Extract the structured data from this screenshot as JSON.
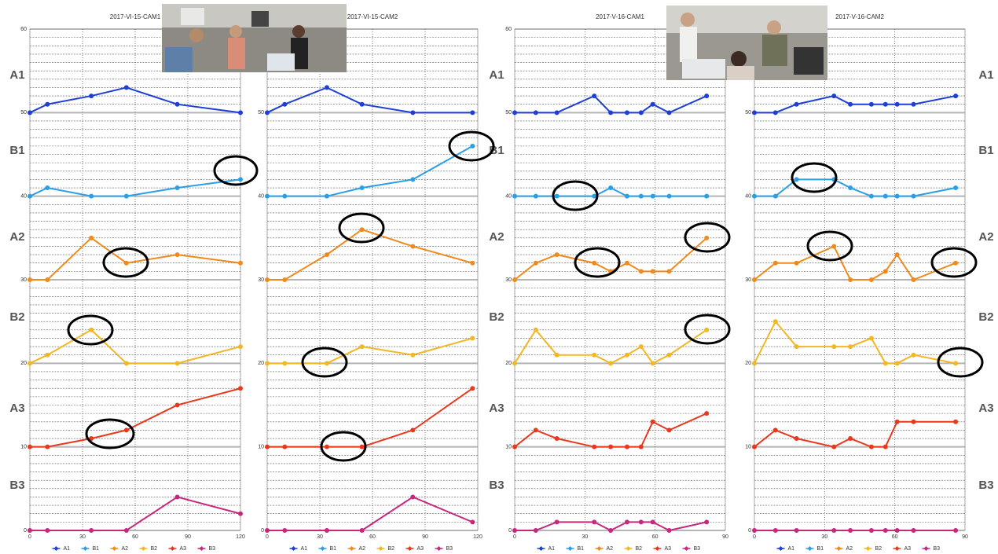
{
  "row_labels": [
    "A1",
    "B1",
    "A2",
    "B2",
    "A3",
    "B3"
  ],
  "chart_data": [
    {
      "type": "line",
      "title": "2017-VI-15-CAM1",
      "x": [
        0,
        10,
        35,
        55,
        84,
        120
      ],
      "xlim": [
        0,
        120
      ],
      "xticks": [
        0,
        30,
        60,
        90,
        120
      ],
      "ylim": [
        0,
        60
      ],
      "yticks": [
        0,
        10,
        20,
        30,
        40,
        50,
        60
      ],
      "grid": true,
      "minor_grid": true,
      "legend": "bottom",
      "series": [
        {
          "name": "A1",
          "color": "#1e3fd6",
          "values": [
            50,
            51,
            52,
            53,
            51,
            50
          ]
        },
        {
          "name": "B1",
          "color": "#2b9fe6",
          "values": [
            40,
            41,
            40,
            40,
            41,
            42
          ]
        },
        {
          "name": "A2",
          "color": "#f08a1c",
          "values": [
            30,
            30,
            35,
            32,
            33,
            32
          ]
        },
        {
          "name": "B2",
          "color": "#f2b722",
          "values": [
            20,
            21,
            24,
            20,
            20,
            22
          ]
        },
        {
          "name": "A3",
          "color": "#e8391e",
          "values": [
            10,
            10,
            11,
            12,
            15,
            17
          ]
        },
        {
          "name": "B3",
          "color": "#c6287e",
          "values": [
            0,
            0,
            0,
            0,
            4,
            2
          ]
        }
      ]
    },
    {
      "type": "line",
      "title": "2017-VI-15-CAM2",
      "x": [
        0,
        10,
        34,
        54,
        83,
        117
      ],
      "xlim": [
        0,
        120
      ],
      "xticks": [
        0,
        30,
        60,
        90,
        120
      ],
      "ylim": [
        0,
        60
      ],
      "yticks": [
        0,
        10,
        20,
        30,
        40,
        50,
        60
      ],
      "grid": true,
      "minor_grid": true,
      "legend": "bottom",
      "series": [
        {
          "name": "A1",
          "color": "#1e3fd6",
          "values": [
            50,
            51,
            53,
            51,
            50,
            50
          ]
        },
        {
          "name": "B1",
          "color": "#2b9fe6",
          "values": [
            40,
            40,
            40,
            41,
            42,
            46
          ]
        },
        {
          "name": "A2",
          "color": "#f08a1c",
          "values": [
            30,
            30,
            33,
            36,
            34,
            32
          ]
        },
        {
          "name": "B2",
          "color": "#f2b722",
          "values": [
            20,
            20,
            20,
            22,
            21,
            23
          ]
        },
        {
          "name": "A3",
          "color": "#e8391e",
          "values": [
            10,
            10,
            10,
            10,
            12,
            17
          ]
        },
        {
          "name": "B3",
          "color": "#c6287e",
          "values": [
            0,
            0,
            0,
            0,
            4,
            1
          ]
        }
      ]
    },
    {
      "type": "line",
      "title": "2017-V-16-CAM1",
      "x": [
        0,
        9,
        18,
        34,
        41,
        48,
        54,
        59,
        66,
        82
      ],
      "xlim": [
        0,
        90
      ],
      "xticks": [
        0,
        30,
        60,
        90
      ],
      "ylim": [
        0,
        60
      ],
      "yticks": [
        0,
        10,
        20,
        30,
        40,
        50,
        60
      ],
      "grid": true,
      "minor_grid": true,
      "legend": "bottom",
      "series": [
        {
          "name": "A1",
          "color": "#1e3fd6",
          "values": [
            50,
            50,
            50,
            52,
            50,
            50,
            50,
            51,
            50,
            52
          ]
        },
        {
          "name": "B1",
          "color": "#2b9fe6",
          "values": [
            40,
            40,
            40,
            40,
            41,
            40,
            40,
            40,
            40,
            40
          ]
        },
        {
          "name": "A2",
          "color": "#f08a1c",
          "values": [
            30,
            32,
            33,
            32,
            31,
            32,
            31,
            31,
            31,
            35
          ]
        },
        {
          "name": "B2",
          "color": "#f2b722",
          "values": [
            20,
            24,
            21,
            21,
            20,
            21,
            22,
            20,
            21,
            24
          ]
        },
        {
          "name": "A3",
          "color": "#e8391e",
          "values": [
            10,
            12,
            11,
            10,
            10,
            10,
            10,
            13,
            12,
            14
          ]
        },
        {
          "name": "B3",
          "color": "#c6287e",
          "values": [
            0,
            0,
            1,
            1,
            0,
            1,
            1,
            1,
            0,
            1
          ]
        }
      ]
    },
    {
      "type": "line",
      "title": "2017-V-16-CAM2",
      "x": [
        0,
        9,
        18,
        34,
        41,
        50,
        56,
        61,
        68,
        86
      ],
      "xlim": [
        0,
        90
      ],
      "xticks": [
        0,
        30,
        60,
        90
      ],
      "ylim": [
        0,
        60
      ],
      "yticks": [
        0,
        10,
        20,
        30,
        40,
        50,
        60
      ],
      "grid": true,
      "minor_grid": true,
      "legend": "bottom",
      "series": [
        {
          "name": "A1",
          "color": "#1e3fd6",
          "values": [
            50,
            50,
            51,
            52,
            51,
            51,
            51,
            51,
            51,
            52
          ]
        },
        {
          "name": "B1",
          "color": "#2b9fe6",
          "values": [
            40,
            40,
            42,
            42,
            41,
            40,
            40,
            40,
            40,
            41
          ]
        },
        {
          "name": "A2",
          "color": "#f08a1c",
          "values": [
            30,
            32,
            32,
            34,
            30,
            30,
            31,
            33,
            30,
            32
          ]
        },
        {
          "name": "B2",
          "color": "#f2b722",
          "values": [
            20,
            25,
            22,
            22,
            22,
            23,
            20,
            20,
            21,
            20
          ]
        },
        {
          "name": "A3",
          "color": "#e8391e",
          "values": [
            10,
            12,
            11,
            10,
            11,
            10,
            10,
            13,
            13,
            13
          ]
        },
        {
          "name": "B3",
          "color": "#c6287e",
          "values": [
            0,
            0,
            0,
            0,
            0,
            0,
            0,
            0,
            0,
            0
          ]
        }
      ]
    }
  ]
}
